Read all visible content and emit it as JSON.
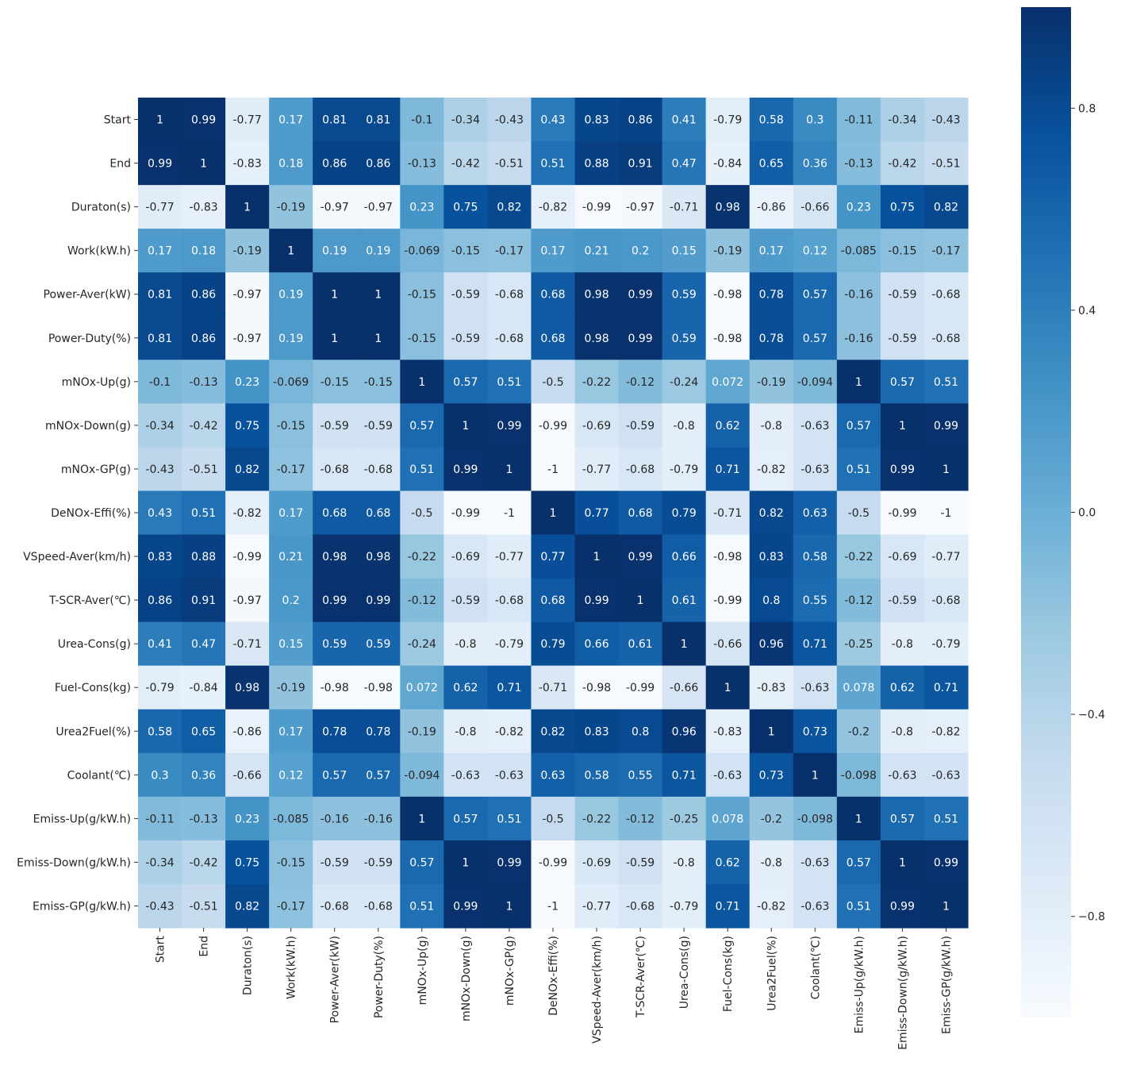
{
  "chart_data": {
    "type": "heatmap",
    "title": "",
    "labels": [
      "Start",
      "End",
      "Duraton(s)",
      "Work(kW.h)",
      "Power-Aver(kW)",
      "Power-Duty(%)",
      "mNOx-Up(g)",
      "mNOx-Down(g)",
      "mNOx-GP(g)",
      "DeNOx-Effi(%)",
      "VSpeed-Aver(km/h)",
      "T-SCR-Aver(℃)",
      "Urea-Cons(g)",
      "Fuel-Cons(kg)",
      "Urea2Fuel(%)",
      "Coolant(℃)",
      "Emiss-Up(g/kW.h)",
      "Emiss-Down(g/kW.h)",
      "Emiss-GP(g/kW.h)"
    ],
    "annotations": [
      [
        "1",
        "0.99",
        "-0.77",
        "0.17",
        "0.81",
        "0.81",
        "-0.1",
        "-0.34",
        "-0.43",
        "0.43",
        "0.83",
        "0.86",
        "0.41",
        "-0.79",
        "0.58",
        "0.3",
        "-0.11",
        "-0.34",
        "-0.43"
      ],
      [
        "0.99",
        "1",
        "-0.83",
        "0.18",
        "0.86",
        "0.86",
        "-0.13",
        "-0.42",
        "-0.51",
        "0.51",
        "0.88",
        "0.91",
        "0.47",
        "-0.84",
        "0.65",
        "0.36",
        "-0.13",
        "-0.42",
        "-0.51"
      ],
      [
        "-0.77",
        "-0.83",
        "1",
        "-0.19",
        "-0.97",
        "-0.97",
        "0.23",
        "0.75",
        "0.82",
        "-0.82",
        "-0.99",
        "-0.97",
        "-0.71",
        "0.98",
        "-0.86",
        "-0.66",
        "0.23",
        "0.75",
        "0.82"
      ],
      [
        "0.17",
        "0.18",
        "-0.19",
        "1",
        "0.19",
        "0.19",
        "-0.069",
        "-0.15",
        "-0.17",
        "0.17",
        "0.21",
        "0.2",
        "0.15",
        "-0.19",
        "0.17",
        "0.12",
        "-0.085",
        "-0.15",
        "-0.17"
      ],
      [
        "0.81",
        "0.86",
        "-0.97",
        "0.19",
        "1",
        "1",
        "-0.15",
        "-0.59",
        "-0.68",
        "0.68",
        "0.98",
        "0.99",
        "0.59",
        "-0.98",
        "0.78",
        "0.57",
        "-0.16",
        "-0.59",
        "-0.68"
      ],
      [
        "0.81",
        "0.86",
        "-0.97",
        "0.19",
        "1",
        "1",
        "-0.15",
        "-0.59",
        "-0.68",
        "0.68",
        "0.98",
        "0.99",
        "0.59",
        "-0.98",
        "0.78",
        "0.57",
        "-0.16",
        "-0.59",
        "-0.68"
      ],
      [
        "-0.1",
        "-0.13",
        "0.23",
        "-0.069",
        "-0.15",
        "-0.15",
        "1",
        "0.57",
        "0.51",
        "-0.5",
        "-0.22",
        "-0.12",
        "-0.24",
        "0.072",
        "-0.19",
        "-0.094",
        "1",
        "0.57",
        "0.51"
      ],
      [
        "-0.34",
        "-0.42",
        "0.75",
        "-0.15",
        "-0.59",
        "-0.59",
        "0.57",
        "1",
        "0.99",
        "-0.99",
        "-0.69",
        "-0.59",
        "-0.8",
        "0.62",
        "-0.8",
        "-0.63",
        "0.57",
        "1",
        "0.99"
      ],
      [
        "-0.43",
        "-0.51",
        "0.82",
        "-0.17",
        "-0.68",
        "-0.68",
        "0.51",
        "0.99",
        "1",
        "-1",
        "-0.77",
        "-0.68",
        "-0.79",
        "0.71",
        "-0.82",
        "-0.63",
        "0.51",
        "0.99",
        "1"
      ],
      [
        "0.43",
        "0.51",
        "-0.82",
        "0.17",
        "0.68",
        "0.68",
        "-0.5",
        "-0.99",
        "-1",
        "1",
        "0.77",
        "0.68",
        "0.79",
        "-0.71",
        "0.82",
        "0.63",
        "-0.5",
        "-0.99",
        "-1"
      ],
      [
        "0.83",
        "0.88",
        "-0.99",
        "0.21",
        "0.98",
        "0.98",
        "-0.22",
        "-0.69",
        "-0.77",
        "0.77",
        "1",
        "0.99",
        "0.66",
        "-0.98",
        "0.83",
        "0.58",
        "-0.22",
        "-0.69",
        "-0.77"
      ],
      [
        "0.86",
        "0.91",
        "-0.97",
        "0.2",
        "0.99",
        "0.99",
        "-0.12",
        "-0.59",
        "-0.68",
        "0.68",
        "0.99",
        "1",
        "0.61",
        "-0.99",
        "0.8",
        "0.55",
        "-0.12",
        "-0.59",
        "-0.68"
      ],
      [
        "0.41",
        "0.47",
        "-0.71",
        "0.15",
        "0.59",
        "0.59",
        "-0.24",
        "-0.8",
        "-0.79",
        "0.79",
        "0.66",
        "0.61",
        "1",
        "-0.66",
        "0.96",
        "0.71",
        "-0.25",
        "-0.8",
        "-0.79"
      ],
      [
        "-0.79",
        "-0.84",
        "0.98",
        "-0.19",
        "-0.98",
        "-0.98",
        "0.072",
        "0.62",
        "0.71",
        "-0.71",
        "-0.98",
        "-0.99",
        "-0.66",
        "1",
        "-0.83",
        "-0.63",
        "0.078",
        "0.62",
        "0.71"
      ],
      [
        "0.58",
        "0.65",
        "-0.86",
        "0.17",
        "0.78",
        "0.78",
        "-0.19",
        "-0.8",
        "-0.82",
        "0.82",
        "0.83",
        "0.8",
        "0.96",
        "-0.83",
        "1",
        "0.73",
        "-0.2",
        "-0.8",
        "-0.82"
      ],
      [
        "0.3",
        "0.36",
        "-0.66",
        "0.12",
        "0.57",
        "0.57",
        "-0.094",
        "-0.63",
        "-0.63",
        "0.63",
        "0.58",
        "0.55",
        "0.71",
        "-0.63",
        "0.73",
        "1",
        "-0.098",
        "-0.63",
        "-0.63"
      ],
      [
        "-0.11",
        "-0.13",
        "0.23",
        "-0.085",
        "-0.16",
        "-0.16",
        "1",
        "0.57",
        "0.51",
        "-0.5",
        "-0.22",
        "-0.12",
        "-0.25",
        "0.078",
        "-0.2",
        "-0.098",
        "1",
        "0.57",
        "0.51"
      ],
      [
        "-0.34",
        "-0.42",
        "0.75",
        "-0.15",
        "-0.59",
        "-0.59",
        "0.57",
        "1",
        "0.99",
        "-0.99",
        "-0.69",
        "-0.59",
        "-0.8",
        "0.62",
        "-0.8",
        "-0.63",
        "0.57",
        "1",
        "0.99"
      ],
      [
        "-0.43",
        "-0.51",
        "0.82",
        "-0.17",
        "-0.68",
        "-0.68",
        "0.51",
        "0.99",
        "1",
        "-1",
        "-0.77",
        "-0.68",
        "-0.79",
        "0.71",
        "-0.82",
        "-0.63",
        "0.51",
        "0.99",
        "1"
      ]
    ],
    "colormap": "Blues",
    "colorbar": {
      "range": [
        -1,
        1
      ],
      "ticks": [
        0.8,
        0.4,
        0.0,
        -0.4,
        -0.8
      ],
      "tick_labels": [
        "0.8",
        "0.4",
        "0.0",
        "−0.4",
        "−0.8"
      ]
    },
    "square_cells": true
  },
  "colors": {
    "low": "#f7fbff",
    "high": "#08306b",
    "text_dark": "#262626",
    "text_light": "#ffffff"
  }
}
